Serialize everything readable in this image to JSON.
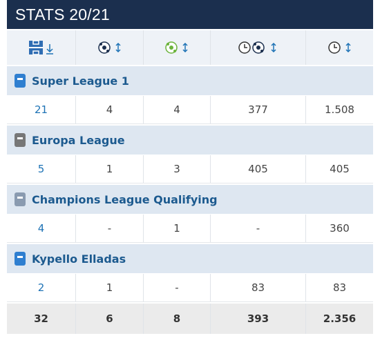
{
  "header": {
    "title": "STATS 20/21"
  },
  "competitions": [
    {
      "name": "Super League 1",
      "values": [
        "21",
        "4",
        "4",
        "377",
        "1.508"
      ]
    },
    {
      "name": "Europa League",
      "values": [
        "5",
        "1",
        "3",
        "405",
        "405"
      ]
    },
    {
      "name": "Champions League Qualifying",
      "values": [
        "4",
        "-",
        "1",
        "-",
        "360"
      ]
    },
    {
      "name": "Kypello Elladas",
      "values": [
        "2",
        "1",
        "-",
        "83",
        "83"
      ]
    }
  ],
  "total": {
    "values": [
      "32",
      "6",
      "8",
      "393",
      "2.356"
    ]
  }
}
